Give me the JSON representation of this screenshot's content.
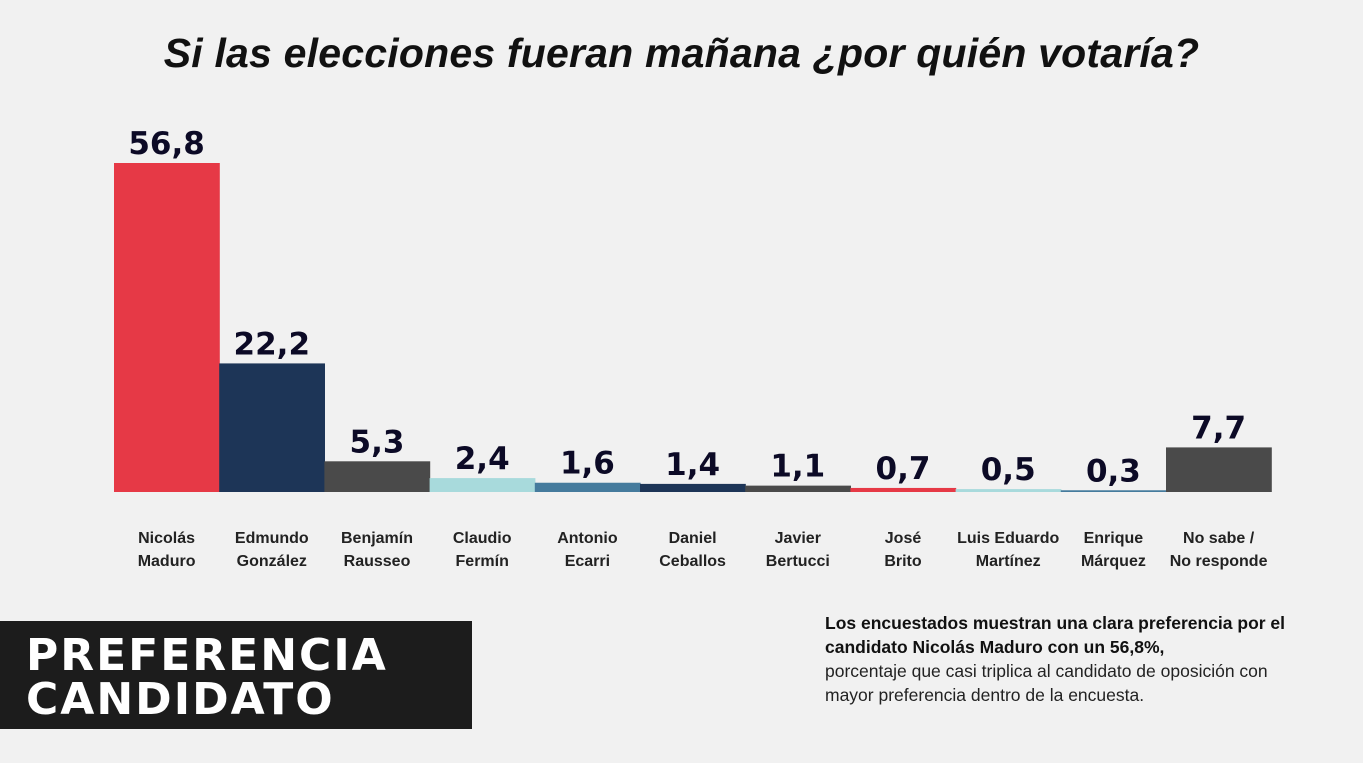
{
  "chart_data": {
    "type": "bar",
    "title": "Si las elecciones fueran mañana ¿por quién votaría?",
    "categories": [
      [
        "Nicolás",
        "Maduro"
      ],
      [
        "Edmundo",
        "González"
      ],
      [
        "Benjamín",
        "Rausseo"
      ],
      [
        "Claudio",
        "Fermín"
      ],
      [
        "Antonio",
        "Ecarri"
      ],
      [
        "Daniel",
        "Ceballos"
      ],
      [
        "Javier",
        "Bertucci"
      ],
      [
        "José",
        "Brito"
      ],
      [
        "Luis Eduardo",
        "Martínez"
      ],
      [
        "Enrique",
        "Márquez"
      ],
      [
        "No sabe /",
        "No responde"
      ]
    ],
    "values": [
      56.8,
      22.2,
      5.3,
      2.4,
      1.6,
      1.4,
      1.1,
      0.7,
      0.5,
      0.3,
      7.7
    ],
    "value_labels": [
      "56,8",
      "22,2",
      "5,3",
      "2,4",
      "1,6",
      "1,4",
      "1,1",
      "0,7",
      "0,5",
      "0,3",
      "7,7"
    ],
    "colors": [
      "#e63946",
      "#1d3557",
      "#4a4a4a",
      "#a8dadc",
      "#457b9d",
      "#1d3557",
      "#4a4a4a",
      "#e63946",
      "#a8dadc",
      "#457b9d",
      "#4a4a4a"
    ],
    "ylim": [
      0,
      56.8
    ],
    "grid": false,
    "legend": "none"
  },
  "badge": {
    "line1": "PREFERENCIA",
    "line2": "CANDIDATO"
  },
  "note": {
    "strong": "Los encuestados muestran una clara preferencia por el candidato Nicolás Maduro con un 56,8%,",
    "rest": "porcentaje que casi triplica al candidato de oposición con mayor preferencia dentro de la encuesta."
  }
}
